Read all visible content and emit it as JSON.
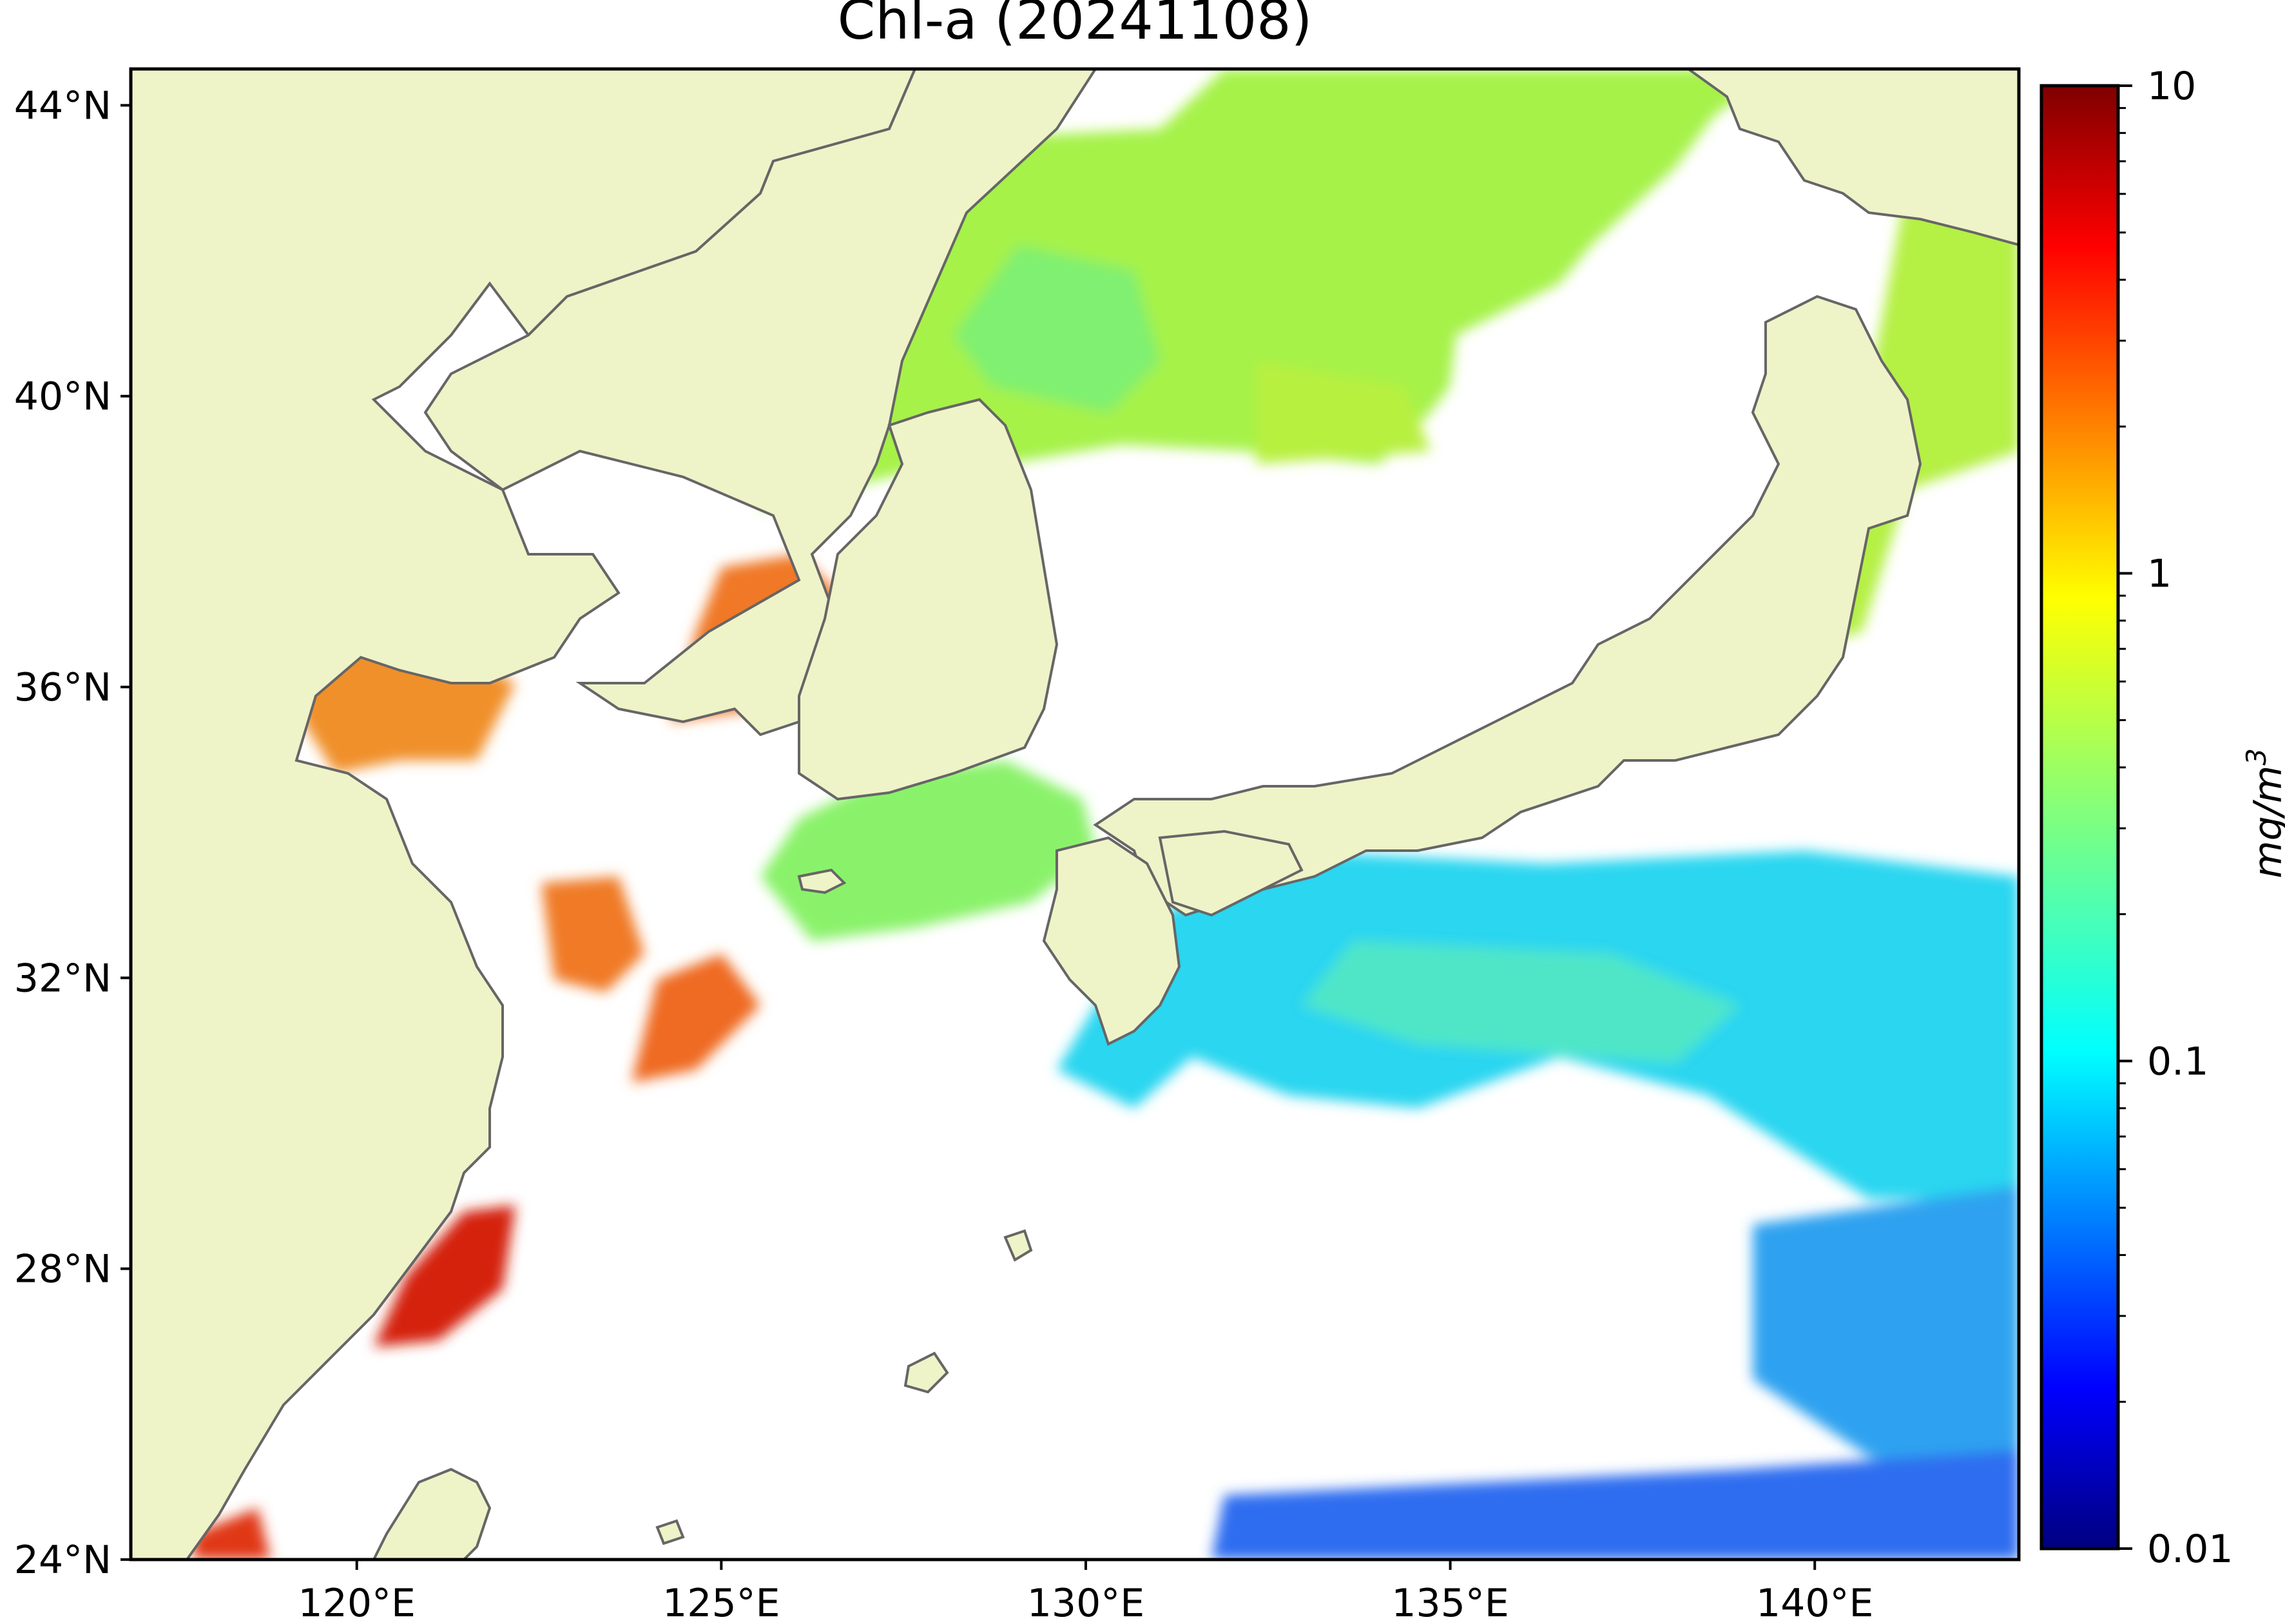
{
  "title": "Chl-a (20241108)",
  "map": {
    "lon_range": [
      116.9,
      142.8
    ],
    "lat_range": [
      24,
      44.5
    ],
    "lon_ticks": [
      {
        "value": 120,
        "label": "120°E"
      },
      {
        "value": 125,
        "label": "125°E"
      },
      {
        "value": 130,
        "label": "130°E"
      },
      {
        "value": 135,
        "label": "135°E"
      },
      {
        "value": 140,
        "label": "140°E"
      }
    ],
    "lat_ticks": [
      {
        "value": 24,
        "label": "24°N"
      },
      {
        "value": 28,
        "label": "28°N"
      },
      {
        "value": 32,
        "label": "32°N"
      },
      {
        "value": 36,
        "label": "36°N"
      },
      {
        "value": 40,
        "label": "40°N"
      },
      {
        "value": 44,
        "label": "44°N"
      }
    ],
    "land_color": "#eff3c8",
    "coast_color": "#666666",
    "no_data_color": "#ffffff"
  },
  "colorbar": {
    "scale": "log",
    "range": [
      0.01,
      10
    ],
    "ticks": [
      {
        "value": 10,
        "label": "10"
      },
      {
        "value": 1,
        "label": "1"
      },
      {
        "value": 0.1,
        "label": "0.1"
      },
      {
        "value": 0.01,
        "label": "0.01"
      }
    ],
    "label": "mg/m",
    "label_sup": "3",
    "colormap": "jet"
  }
}
